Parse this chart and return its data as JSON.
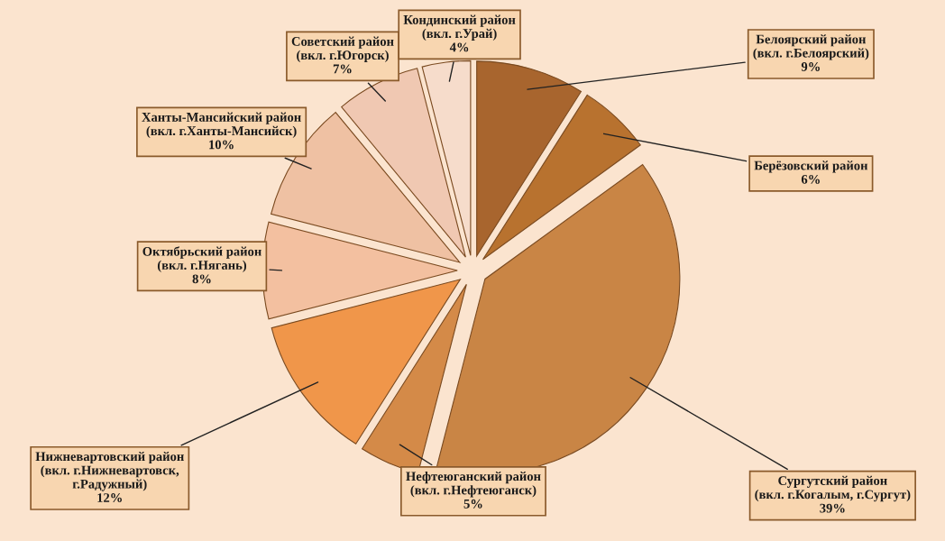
{
  "chart_data": {
    "type": "pie",
    "categories": [
      "Белоярский район\n(вкл. г.Белоярский)",
      "Берёзовский район",
      "Сургутский район\n(вкл. г.Когалым, г.Сургут)",
      "Нефтеюганский район\n(вкл. г.Нефтеюганск)",
      "Нижневартовский район\n(вкл. г.Нижневартовск,\nг.Радужный)",
      "Октябрьский район\n(вкл. г.Нягань)",
      "Ханты-Мансийский район\n(вкл. г.Ханты-Мансийск)",
      "Советский район\n(вкл. г.Югорск)",
      "Кондинский район\n(вкл. г.Урай)"
    ],
    "values": [
      9,
      6,
      39,
      5,
      12,
      8,
      10,
      7,
      4
    ],
    "value_labels": [
      "9%",
      "6%",
      "39%",
      "5%",
      "12%",
      "8%",
      "10%",
      "7%",
      "4%"
    ],
    "colors": [
      "#a8652e",
      "#b8722f",
      "#c98545",
      "#d48a48",
      "#f0964a",
      "#f3c0a0",
      "#efc1a3",
      "#f0c8b2",
      "#f6dccb"
    ]
  }
}
